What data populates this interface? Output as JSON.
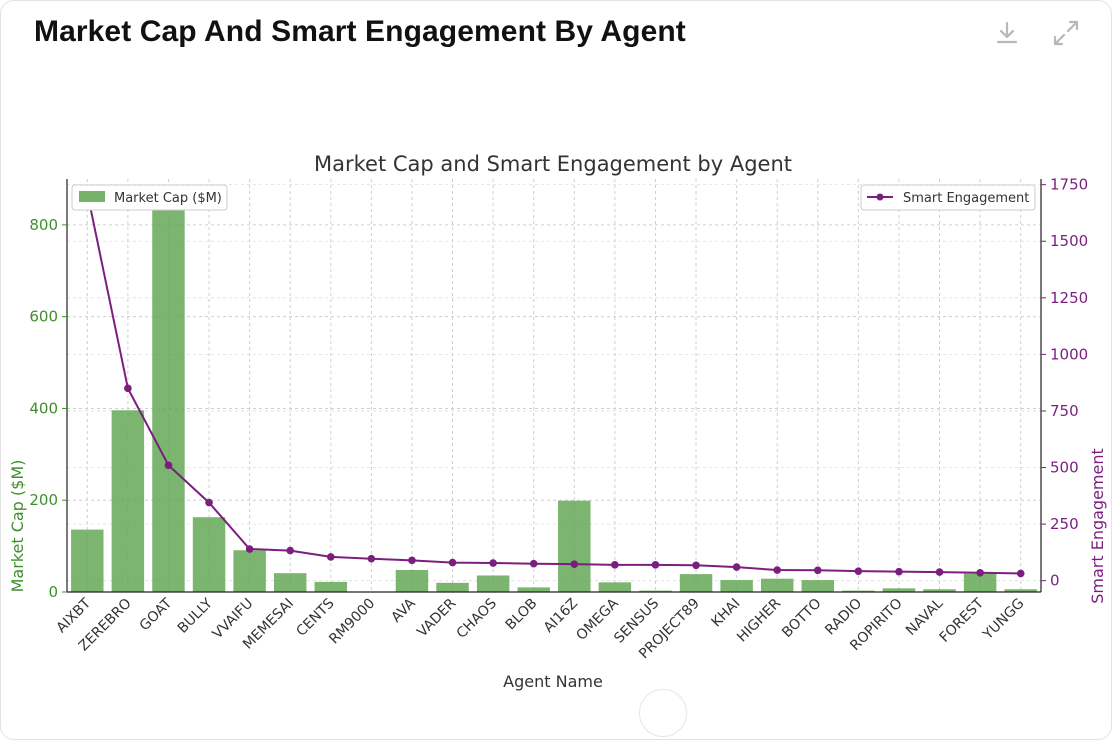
{
  "header": {
    "title": "Market Cap And Smart Engagement By Agent",
    "download_icon": "download-icon",
    "expand_icon": "expand-icon"
  },
  "chart_data": {
    "type": "bar+line",
    "title": "Market Cap and Smart Engagement by Agent",
    "xlabel": "Agent Name",
    "ylabel_left": "Market Cap ($M)",
    "ylabel_right": "Smart Engagement",
    "ylim_left": [
      0,
      900
    ],
    "ylim_right": [
      -50,
      1775
    ],
    "yticks_left": [
      0,
      200,
      400,
      600,
      800
    ],
    "yticks_right": [
      0,
      250,
      500,
      750,
      1000,
      1250,
      1500,
      1750
    ],
    "grid": true,
    "categories": [
      "AIXBT",
      "ZEREBRO",
      "GOAT",
      "BULLY",
      "VVAIFU",
      "MEMESAI",
      "CENTS",
      "RM9000",
      "AVA",
      "VADER",
      "CHAOS",
      "BLOB",
      "AI16Z",
      "OMEGA",
      "SENSUS",
      "PROJECT89",
      "KHAI",
      "HIGHER",
      "BOTTO",
      "RADIO",
      "ROPIRITO",
      "NAVAL",
      "FOREST",
      "YUNGG"
    ],
    "series": [
      {
        "name": "Market Cap ($M)",
        "kind": "bar",
        "axis": "left",
        "color": "#5fa54f",
        "values": [
          136,
          396,
          870,
          163,
          91,
          41,
          22,
          1,
          48,
          20,
          36,
          10,
          199,
          21,
          3,
          39,
          26,
          29,
          26,
          3,
          8,
          6,
          40,
          6
        ]
      },
      {
        "name": "Smart Engagement",
        "kind": "line",
        "axis": "right",
        "color": "#7b1f7f",
        "values": [
          1715,
          850,
          510,
          345,
          140,
          133,
          105,
          97,
          90,
          80,
          78,
          75,
          73,
          70,
          70,
          68,
          60,
          47,
          46,
          42,
          40,
          38,
          35,
          32
        ]
      }
    ],
    "legend_left": {
      "label": "Market Cap ($M)",
      "position": "top-left"
    },
    "legend_right": {
      "label": "Smart Engagement",
      "position": "top-right"
    },
    "colors": {
      "left_axis": "#3f8f2f",
      "right_axis": "#7b1f7f",
      "text": "#333333",
      "grid": "#cfcfcf"
    }
  }
}
